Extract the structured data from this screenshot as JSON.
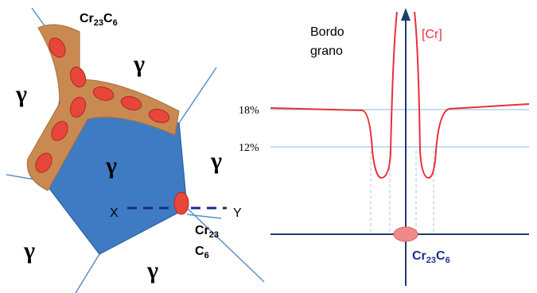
{
  "left": {
    "formula_top": [
      "Cr",
      "23",
      "C",
      "6"
    ],
    "gamma_labels": [
      "γ",
      "γ",
      "γ",
      "γ",
      "γ",
      "γ"
    ],
    "x_label": "X",
    "y_label": "Y",
    "formula_dot": [
      "Cr",
      "23",
      "C",
      "6"
    ]
  },
  "right": {
    "boundary_label": [
      "Bordo",
      "grano"
    ],
    "cr_label": "[Cr]",
    "level_high": "18%",
    "level_low": "12%",
    "formula_bottom": [
      "Cr",
      "23",
      "C",
      "6"
    ]
  }
}
